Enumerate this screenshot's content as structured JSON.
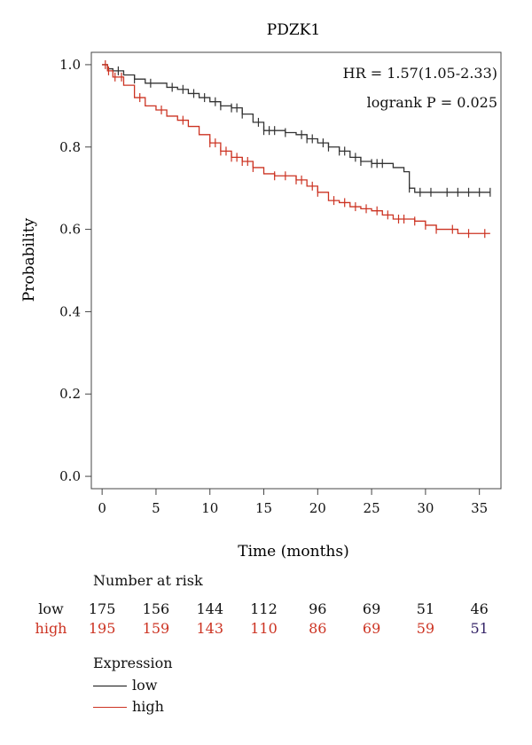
{
  "chart_data": {
    "type": "line",
    "title": "PDZK1",
    "xlabel": "Time (months)",
    "ylabel": "Probability",
    "xlim": [
      -1,
      37
    ],
    "ylim": [
      -0.03,
      1.03
    ],
    "xticks": [
      0,
      5,
      10,
      15,
      20,
      25,
      30,
      35
    ],
    "xtick_labels": [
      "0",
      "5",
      "10",
      "15",
      "20",
      "25",
      "30",
      "35"
    ],
    "yticks": [
      0.0,
      0.2,
      0.4,
      0.6,
      0.8,
      1.0
    ],
    "ytick_labels": [
      "0.0",
      "0.2",
      "0.4",
      "0.6",
      "0.8",
      "1.0"
    ],
    "annotations": [
      "HR = 1.57(1.05-2.33)",
      "logrank P = 0.025"
    ],
    "series": [
      {
        "name": "low",
        "color": "#333333",
        "x": [
          0,
          0.5,
          1,
          2,
          3,
          4,
          5,
          6,
          7,
          8,
          9,
          10,
          11,
          12,
          13,
          14,
          15,
          16,
          17,
          18,
          19,
          20,
          21,
          22,
          23,
          24,
          25,
          26,
          27,
          28,
          28.5,
          29,
          30,
          31,
          32,
          33,
          34,
          35,
          36
        ],
        "y": [
          1.0,
          0.99,
          0.985,
          0.975,
          0.965,
          0.955,
          0.955,
          0.945,
          0.94,
          0.93,
          0.92,
          0.91,
          0.9,
          0.895,
          0.88,
          0.86,
          0.84,
          0.84,
          0.835,
          0.83,
          0.82,
          0.81,
          0.8,
          0.79,
          0.775,
          0.765,
          0.76,
          0.76,
          0.75,
          0.74,
          0.7,
          0.69,
          0.69,
          0.69,
          0.69,
          0.69,
          0.69,
          0.69,
          0.69
        ],
        "censor_x": [
          1.5,
          3,
          4.5,
          6.5,
          7.5,
          8.5,
          9.5,
          10.5,
          11,
          12,
          12.5,
          13,
          14.5,
          15,
          15.5,
          16,
          17,
          18.5,
          19,
          19.5,
          20.5,
          21,
          22,
          22.5,
          23.5,
          24,
          25,
          25.5,
          26,
          28.5,
          29.5,
          30.5,
          32,
          33,
          34,
          35,
          36
        ]
      },
      {
        "name": "high",
        "color": "#cc3322",
        "x": [
          0,
          0.5,
          1,
          2,
          3,
          4,
          5,
          6,
          7,
          8,
          9,
          10,
          11,
          12,
          13,
          14,
          15,
          16,
          17,
          18,
          19,
          20,
          21,
          22,
          23,
          24,
          25,
          26,
          27,
          28,
          29,
          30,
          31,
          32,
          33,
          34,
          35,
          36
        ],
        "y": [
          1.0,
          0.985,
          0.97,
          0.95,
          0.92,
          0.9,
          0.89,
          0.875,
          0.865,
          0.85,
          0.83,
          0.81,
          0.79,
          0.775,
          0.765,
          0.75,
          0.735,
          0.73,
          0.73,
          0.72,
          0.705,
          0.69,
          0.67,
          0.665,
          0.655,
          0.65,
          0.645,
          0.635,
          0.625,
          0.625,
          0.62,
          0.61,
          0.6,
          0.6,
          0.59,
          0.59,
          0.59,
          0.59
        ],
        "censor_x": [
          0.3,
          0.6,
          1.2,
          1.8,
          3.5,
          5.5,
          7.5,
          10,
          10.5,
          11,
          11.5,
          12,
          12.5,
          13,
          13.5,
          14,
          16,
          17,
          18,
          18.5,
          19.5,
          20,
          21.5,
          22.5,
          23.5,
          24.5,
          25.5,
          26.5,
          27.5,
          28,
          29,
          30,
          31,
          32.5,
          34,
          35.5
        ]
      }
    ]
  },
  "risk_table": {
    "title": "Number at risk",
    "rows": [
      {
        "label": "low",
        "color": "#111111",
        "values": [
          "175",
          "156",
          "144",
          "112",
          "96",
          "69",
          "51",
          "46"
        ]
      },
      {
        "label": "high",
        "color": "#cc3322",
        "values": [
          "195",
          "159",
          "143",
          "110",
          "86",
          "69",
          "59",
          "51"
        ]
      }
    ],
    "last_high_value_color": "#332266"
  },
  "legend": {
    "title": "Expression",
    "items": [
      {
        "label": "low",
        "color": "#111111"
      },
      {
        "label": "high",
        "color": "#cc3322"
      }
    ]
  }
}
